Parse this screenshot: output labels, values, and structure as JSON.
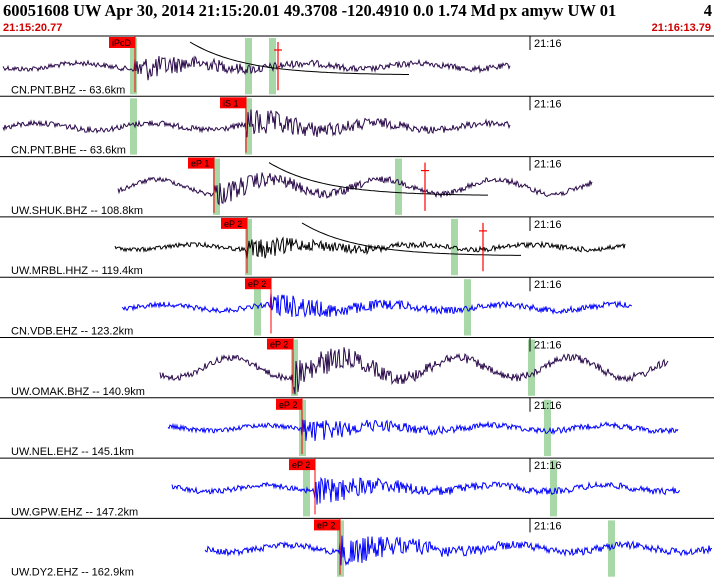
{
  "header": {
    "title": "60051608 UW Apr 30, 2014 21:15:20.01   49.3708 -120.4910  0.0 1.74 Md px amyw UW 01",
    "index": "4",
    "start_time": "21:15:20.77",
    "end_time": "21:16:13.79"
  },
  "colors": {
    "trace_dark": "#2a0a4a",
    "trace_black": "#000000",
    "trace_blue": "#0000ff",
    "pick_fill": "#ff0000",
    "pick_line": "#ff0000",
    "marker_green": "#a8d8a8",
    "tick_line": "#000000"
  },
  "traces": [
    {
      "label": "CN.PNT.BHZ -- 63.6km",
      "pick": "iPcD",
      "minute": "21:16",
      "color": "trace_dark",
      "has_decay": true
    },
    {
      "label": "CN.PNT.BHE -- 63.6km",
      "pick": "iS 1",
      "minute": "21:16",
      "color": "trace_dark",
      "has_decay": false
    },
    {
      "label": "UW.SHUK.BHZ -- 108.8km",
      "pick": "eP 1",
      "minute": "21:16",
      "color": "trace_dark",
      "has_decay": true
    },
    {
      "label": "UW.MRBL.HHZ -- 119.4km",
      "pick": "eP 2",
      "minute": "21:16",
      "color": "trace_black",
      "has_decay": true
    },
    {
      "label": "CN.VDB.EHZ -- 123.2km",
      "pick": "eP 2",
      "minute": "21:16",
      "color": "trace_blue",
      "has_decay": false
    },
    {
      "label": "UW.OMAK.BHZ -- 140.9km",
      "pick": "eP 2",
      "minute": "21:16",
      "color": "trace_dark",
      "has_decay": false
    },
    {
      "label": "UW.NEL.EHZ -- 145.1km",
      "pick": "eP 2",
      "minute": "21:16",
      "color": "trace_blue",
      "has_decay": false
    },
    {
      "label": "UW.GPW.EHZ -- 147.2km",
      "pick": "eP 2",
      "minute": "21:16",
      "color": "trace_blue",
      "has_decay": false
    },
    {
      "label": "UW.DY2.EHZ -- 162.9km",
      "pick": "eP 2",
      "minute": "21:16",
      "color": "trace_blue",
      "has_decay": false
    }
  ]
}
